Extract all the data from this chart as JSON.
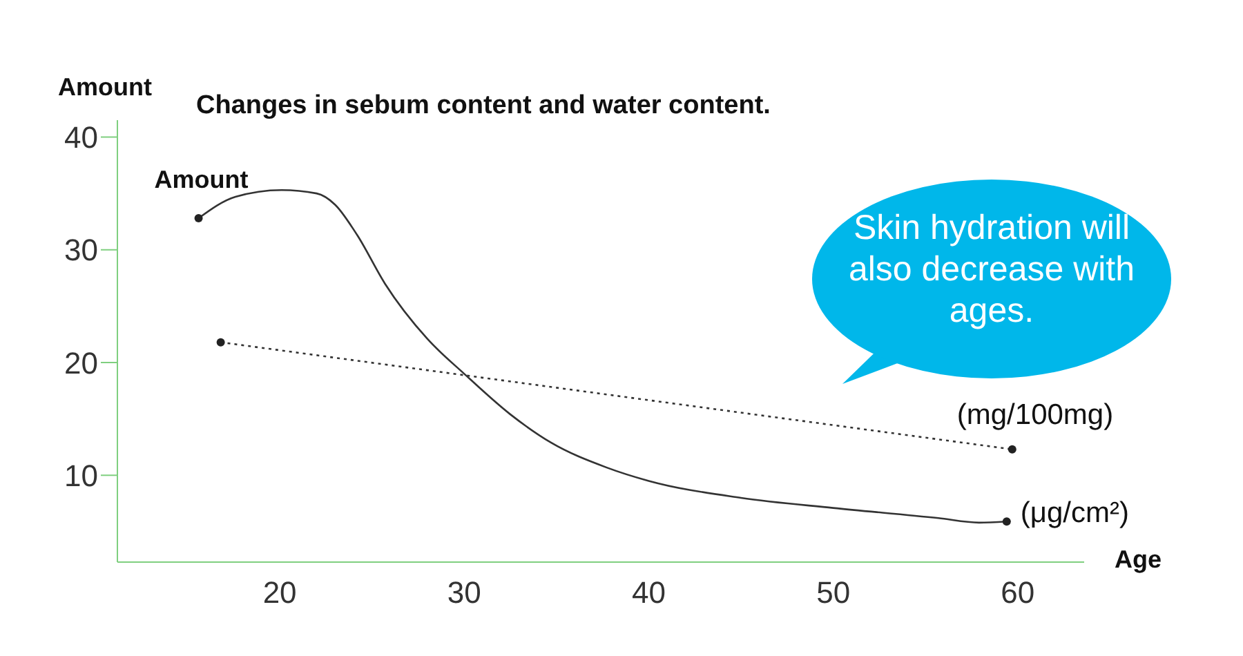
{
  "chart_data": {
    "type": "line",
    "title": "Changes in sebum content and water content.",
    "xlabel": "Age",
    "ylabel": "Amount",
    "xlim": [
      11.2,
      63.6
    ],
    "xticks": [
      20,
      30,
      40,
      50,
      60
    ],
    "ylim": [
      2.3,
      41.5
    ],
    "yticks": [
      10,
      20,
      30,
      40
    ],
    "series": [
      {
        "color": "#333333",
        "line_style": "solid",
        "x": [
          15.6,
          17.6,
          20.1,
          22,
          23,
          24.2,
          25.7,
          28,
          30,
          32.5,
          34.7,
          37.7,
          40,
          45,
          50,
          55.7,
          57.9,
          59.4
        ],
        "values": [
          32.8,
          34.7,
          35.3,
          35.0,
          34.0,
          31.3,
          27,
          22.1,
          19,
          15.4,
          12.9,
          10.7,
          9.5,
          8.0,
          7.1,
          6.2,
          5.8,
          5.9
        ]
      },
      {
        "color": "#333333",
        "line_style": "dotted",
        "x": [
          16.8,
          59.7
        ],
        "values": [
          21.8,
          12.3
        ]
      },
      {
        "type": "scatter",
        "color": "#222222",
        "marker": "circle",
        "x": [
          15.6,
          59.4,
          16.8,
          59.7
        ],
        "values": [
          32.8,
          5.9,
          21.8,
          12.3
        ]
      }
    ],
    "annotations": [
      {
        "text": "Amount",
        "x": 15.6,
        "y": 32.8
      },
      {
        "text": "(mg/100mg)",
        "x": 59.7,
        "y": 12.3
      },
      {
        "text": "(μg/cm²)",
        "x": 59.4,
        "y": 5.9
      },
      "Skin hydration will also decrease with ages."
    ]
  }
}
